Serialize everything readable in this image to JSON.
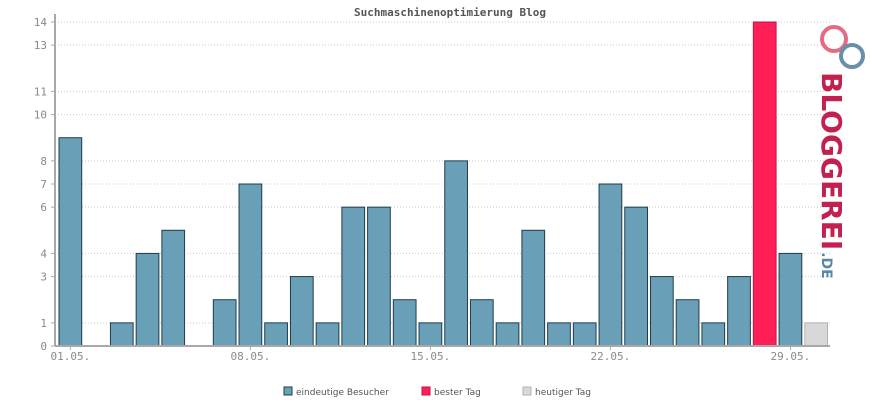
{
  "chart_data": {
    "type": "bar",
    "title": "Suchmaschinenoptimierung Blog",
    "xlabel": "",
    "ylabel": "",
    "x_tick_labels": [
      "01.05.",
      "08.05.",
      "15.05.",
      "22.05.",
      "29.05."
    ],
    "y_tick_labels": [
      "0",
      "1",
      "3",
      "4",
      "6",
      "7",
      "8",
      "10",
      "11",
      "13",
      "14"
    ],
    "ylim": [
      0,
      14
    ],
    "grid": true,
    "legend_placement": "bottom",
    "values": [
      9,
      0,
      1,
      4,
      5,
      0,
      2,
      7,
      1,
      3,
      1,
      6,
      6,
      2,
      1,
      8,
      2,
      1,
      5,
      1,
      1,
      7,
      6,
      3,
      2,
      1,
      3,
      14,
      4,
      1
    ],
    "bar_kinds": [
      "visitors",
      "visitors",
      "visitors",
      "visitors",
      "visitors",
      "visitors",
      "visitors",
      "visitors",
      "visitors",
      "visitors",
      "visitors",
      "visitors",
      "visitors",
      "visitors",
      "visitors",
      "visitors",
      "visitors",
      "visitors",
      "visitors",
      "visitors",
      "visitors",
      "visitors",
      "visitors",
      "visitors",
      "visitors",
      "visitors",
      "visitors",
      "best",
      "visitors",
      "today"
    ],
    "legend": [
      {
        "name": "eindeutige Besucher",
        "kind": "visitors",
        "color": "#6a9fb8"
      },
      {
        "name": "bester Tag",
        "kind": "best",
        "color": "#ff1f57"
      },
      {
        "name": "heutiger Tag",
        "kind": "today",
        "color": "#d8d8d8"
      }
    ]
  },
  "colors": {
    "visitors_fill": "#6a9fb8",
    "visitors_stroke": "#1e3d4d",
    "best_fill": "#ff1f57",
    "best_stroke": "#c4103e",
    "today_fill": "#d8d8d8",
    "today_stroke": "#b3b3b3",
    "grid": "#c8c8c8",
    "axis": "#a8a8a8"
  },
  "logo": {
    "text": "BLOGGEREI",
    "suffix": ".DE",
    "text_color": "#c2214f",
    "suffix_color": "#5a87a8"
  }
}
